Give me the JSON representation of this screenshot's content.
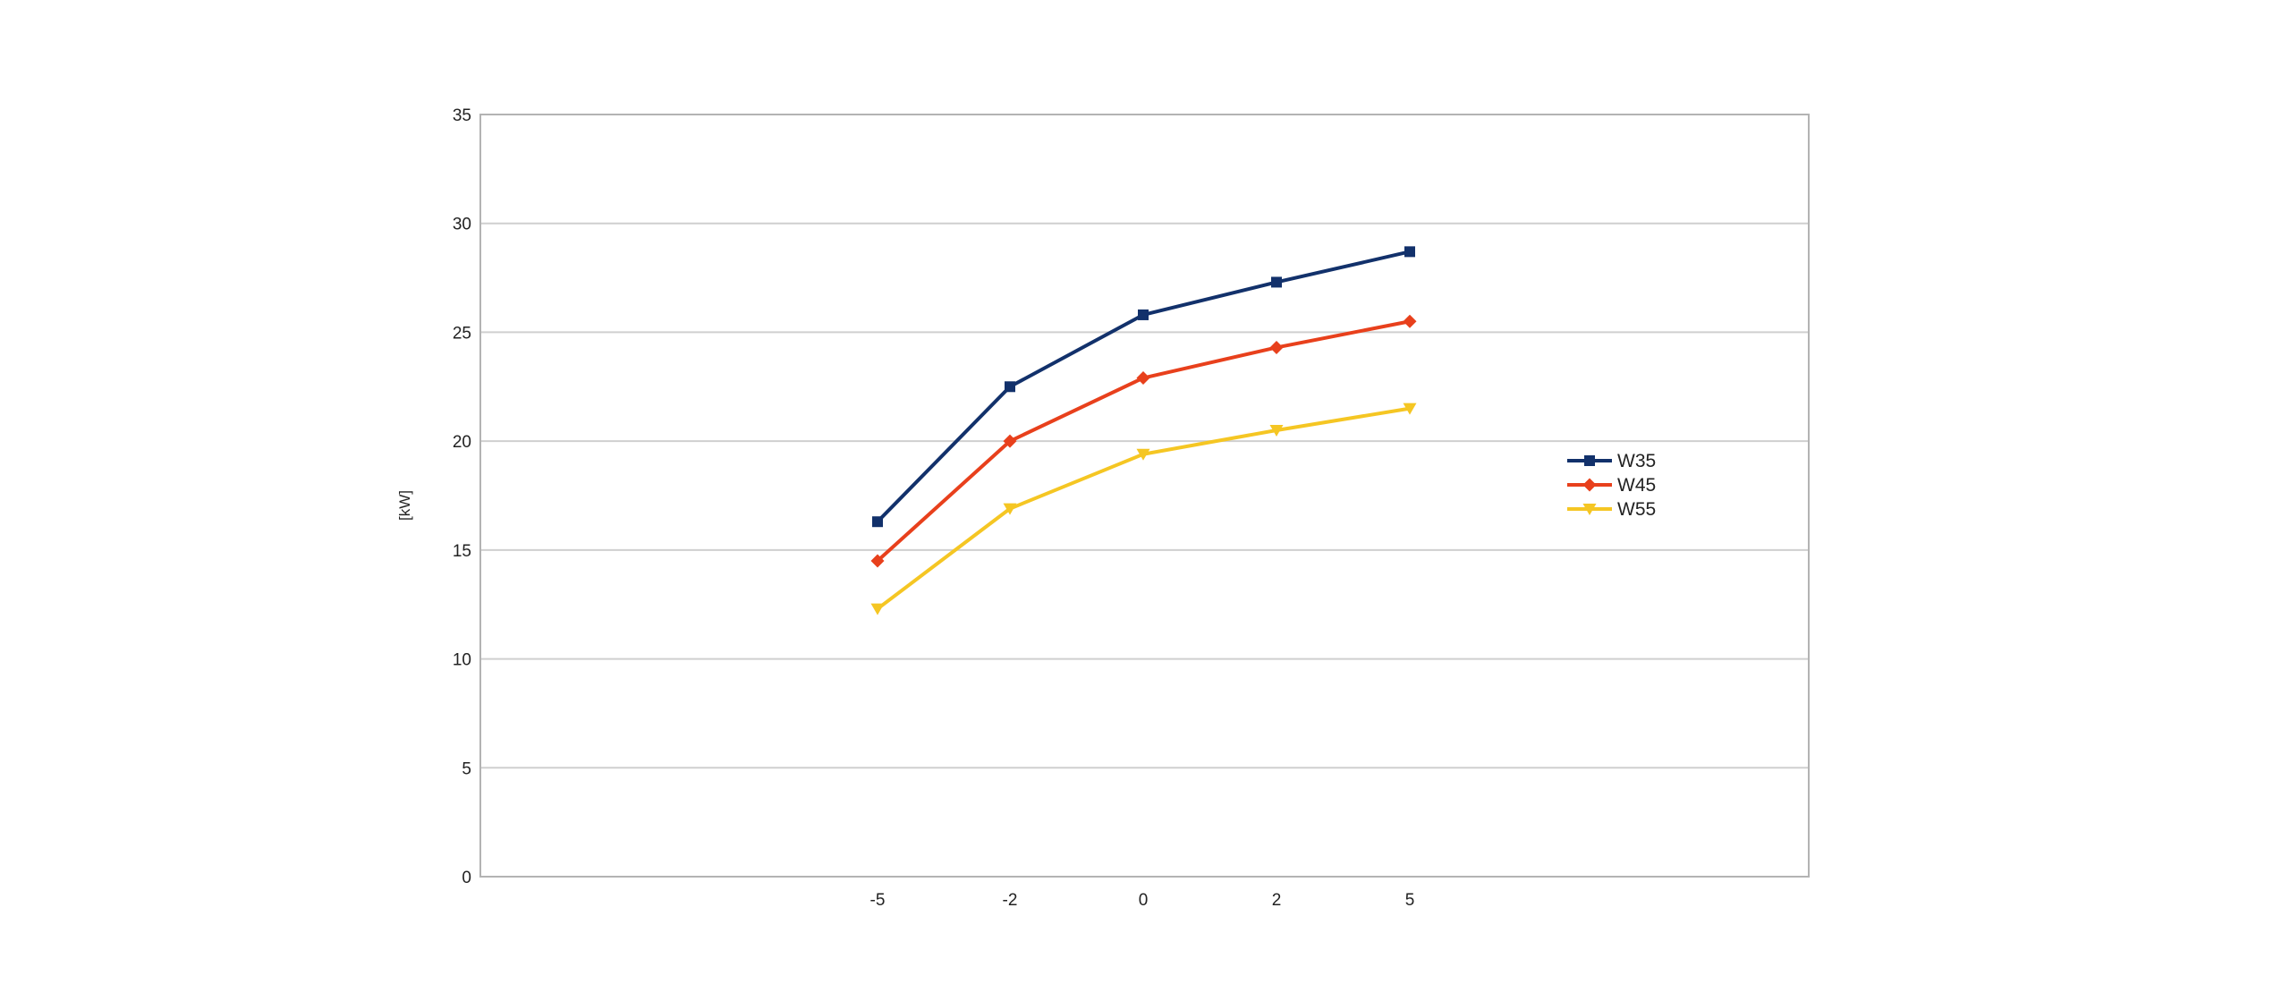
{
  "chart_data": {
    "type": "line",
    "title": "",
    "xlabel": "",
    "ylabel": "[kW]",
    "categories": [
      "-5",
      "-2",
      "0",
      "2",
      "5"
    ],
    "ylim": [
      0,
      35
    ],
    "yticks": [
      "0",
      "5",
      "10",
      "15",
      "20",
      "25",
      "30",
      "35"
    ],
    "grid": true,
    "legend_position": "right",
    "series": [
      {
        "name": "W35",
        "values": [
          16.3,
          22.5,
          25.8,
          27.3,
          28.7
        ],
        "color": "#12316b",
        "marker": "square"
      },
      {
        "name": "W45",
        "values": [
          14.5,
          20.0,
          22.9,
          24.3,
          25.5
        ],
        "color": "#e8401c",
        "marker": "diamond"
      },
      {
        "name": "W55",
        "values": [
          12.3,
          16.9,
          19.4,
          20.5,
          21.5
        ],
        "color": "#f5c623",
        "marker": "triangle-down"
      }
    ]
  }
}
